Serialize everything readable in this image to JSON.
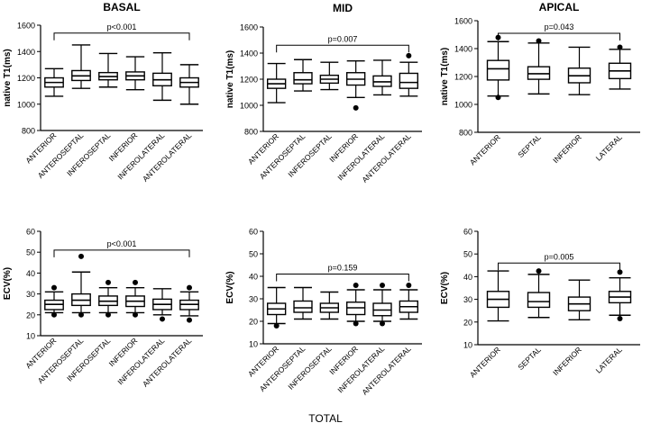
{
  "footer": "TOTAL",
  "chart_data": [
    {
      "type": "boxplot",
      "title": "BASAL",
      "ylabel": "native T1(ms)",
      "ylim": [
        800,
        1600
      ],
      "yticks": [
        800,
        1000,
        1200,
        1400,
        1600
      ],
      "categories": [
        "ANTERIOR",
        "ANTEROSEPTAL",
        "INFEROSEPTAL",
        "INFERIOR",
        "INFEROLATERAL",
        "ANTEROLATERAL"
      ],
      "boxes": [
        {
          "whisker_low": 1060,
          "q1": 1130,
          "median": 1165,
          "q3": 1200,
          "whisker_high": 1270,
          "outliers": []
        },
        {
          "whisker_low": 1120,
          "q1": 1180,
          "median": 1215,
          "q3": 1255,
          "whisker_high": 1450,
          "outliers": []
        },
        {
          "whisker_low": 1130,
          "q1": 1185,
          "median": 1210,
          "q3": 1240,
          "whisker_high": 1385,
          "outliers": []
        },
        {
          "whisker_low": 1110,
          "q1": 1185,
          "median": 1215,
          "q3": 1245,
          "whisker_high": 1360,
          "outliers": []
        },
        {
          "whisker_low": 1030,
          "q1": 1140,
          "median": 1185,
          "q3": 1235,
          "whisker_high": 1390,
          "outliers": []
        },
        {
          "whisker_low": 1000,
          "q1": 1130,
          "median": 1165,
          "q3": 1200,
          "whisker_high": 1300,
          "outliers": []
        }
      ],
      "bracket": {
        "from": 0,
        "to": 5,
        "label": "p<0.001",
        "y": 1540
      }
    },
    {
      "type": "boxplot",
      "title": "MID",
      "ylabel": "native T1(ms)",
      "ylim": [
        800,
        1600
      ],
      "yticks": [
        800,
        1000,
        1200,
        1400,
        1600
      ],
      "categories": [
        "ANTERIOR",
        "ANTEROSEPTAL",
        "INFEROSEPTAL",
        "INFERIOR",
        "INFEROLATERAL",
        "ANTEROLATERAL"
      ],
      "boxes": [
        {
          "whisker_low": 1020,
          "q1": 1130,
          "median": 1165,
          "q3": 1200,
          "whisker_high": 1320,
          "outliers": []
        },
        {
          "whisker_low": 1110,
          "q1": 1165,
          "median": 1195,
          "q3": 1250,
          "whisker_high": 1350,
          "outliers": []
        },
        {
          "whisker_low": 1120,
          "q1": 1170,
          "median": 1200,
          "q3": 1230,
          "whisker_high": 1330,
          "outliers": []
        },
        {
          "whisker_low": 1060,
          "q1": 1155,
          "median": 1200,
          "q3": 1250,
          "whisker_high": 1340,
          "outliers": [
            980
          ]
        },
        {
          "whisker_low": 1080,
          "q1": 1145,
          "median": 1180,
          "q3": 1225,
          "whisker_high": 1345,
          "outliers": []
        },
        {
          "whisker_low": 1070,
          "q1": 1130,
          "median": 1175,
          "q3": 1245,
          "whisker_high": 1330,
          "outliers": [
            1380
          ]
        }
      ],
      "bracket": {
        "from": 0,
        "to": 5,
        "label": "p=0.007",
        "y": 1460
      }
    },
    {
      "type": "boxplot",
      "title": "APICAL",
      "ylabel": "native T1(ms)",
      "ylim": [
        800,
        1600
      ],
      "yticks": [
        800,
        1000,
        1200,
        1400,
        1600
      ],
      "categories": [
        "ANTERIOR",
        "SEPTAL",
        "INFERIOR",
        "LATERAL"
      ],
      "boxes": [
        {
          "whisker_low": 1060,
          "q1": 1175,
          "median": 1255,
          "q3": 1315,
          "whisker_high": 1450,
          "outliers": [
            1480,
            1050
          ]
        },
        {
          "whisker_low": 1075,
          "q1": 1180,
          "median": 1220,
          "q3": 1270,
          "whisker_high": 1440,
          "outliers": [
            1455
          ]
        },
        {
          "whisker_low": 1070,
          "q1": 1155,
          "median": 1205,
          "q3": 1260,
          "whisker_high": 1410,
          "outliers": []
        },
        {
          "whisker_low": 1110,
          "q1": 1185,
          "median": 1240,
          "q3": 1295,
          "whisker_high": 1395,
          "outliers": [
            1410
          ]
        }
      ],
      "bracket": {
        "from": 0,
        "to": 3,
        "label": "p=0.043",
        "y": 1510
      }
    },
    {
      "type": "boxplot",
      "title": "",
      "ylabel": "ECV(%)",
      "ylim": [
        10,
        60
      ],
      "yticks": [
        10,
        20,
        30,
        40,
        50,
        60
      ],
      "categories": [
        "ANTERIOR",
        "ANTEROSEPTAL",
        "INFEROSEPTAL",
        "INFERIOR",
        "INFEROLATERAL",
        "ANTEROLATERAL"
      ],
      "boxes": [
        {
          "whisker_low": 21,
          "q1": 22.5,
          "median": 25,
          "q3": 27,
          "whisker_high": 31,
          "outliers": [
            33,
            20
          ]
        },
        {
          "whisker_low": 21,
          "q1": 24.5,
          "median": 27,
          "q3": 30,
          "whisker_high": 40.5,
          "outliers": [
            48,
            20
          ]
        },
        {
          "whisker_low": 21,
          "q1": 24.5,
          "median": 26.5,
          "q3": 29,
          "whisker_high": 33,
          "outliers": [
            35.5,
            20
          ]
        },
        {
          "whisker_low": 21,
          "q1": 24,
          "median": 26.5,
          "q3": 29,
          "whisker_high": 33,
          "outliers": [
            35.5,
            20
          ]
        },
        {
          "whisker_low": 20,
          "q1": 22.5,
          "median": 25,
          "q3": 27.5,
          "whisker_high": 32.5,
          "outliers": [
            18
          ]
        },
        {
          "whisker_low": 19.5,
          "q1": 22.5,
          "median": 25,
          "q3": 27,
          "whisker_high": 31,
          "outliers": [
            33,
            17.5
          ]
        }
      ],
      "bracket": {
        "from": 0,
        "to": 5,
        "label": "p<0.001",
        "y": 51
      }
    },
    {
      "type": "boxplot",
      "title": "",
      "ylabel": "ECV(%)",
      "ylim": [
        10,
        60
      ],
      "yticks": [
        10,
        20,
        30,
        40,
        50,
        60
      ],
      "categories": [
        "ANTERIOR",
        "ANTEROSEPTAL",
        "INFEROSEPTAL",
        "INFERIOR",
        "INFEROLATERAL",
        "ANTEROLATERAL"
      ],
      "boxes": [
        {
          "whisker_low": 19,
          "q1": 23,
          "median": 25.5,
          "q3": 28,
          "whisker_high": 35,
          "outliers": [
            18
          ]
        },
        {
          "whisker_low": 21,
          "q1": 24,
          "median": 26,
          "q3": 29,
          "whisker_high": 35,
          "outliers": []
        },
        {
          "whisker_low": 21,
          "q1": 24,
          "median": 26,
          "q3": 28,
          "whisker_high": 33,
          "outliers": []
        },
        {
          "whisker_low": 20,
          "q1": 23,
          "median": 26,
          "q3": 28.5,
          "whisker_high": 34,
          "outliers": [
            36,
            19
          ]
        },
        {
          "whisker_low": 20,
          "q1": 22.5,
          "median": 25,
          "q3": 28,
          "whisker_high": 34,
          "outliers": [
            36,
            19
          ]
        },
        {
          "whisker_low": 21,
          "q1": 24,
          "median": 26.5,
          "q3": 29,
          "whisker_high": 34,
          "outliers": [
            36
          ]
        }
      ],
      "bracket": {
        "from": 0,
        "to": 5,
        "label": "p=0.159",
        "y": 41
      }
    },
    {
      "type": "boxplot",
      "title": "",
      "ylabel": "ECV(%)",
      "ylim": [
        10,
        60
      ],
      "yticks": [
        10,
        20,
        30,
        40,
        50,
        60
      ],
      "categories": [
        "ANTERIOR",
        "SEPTAL",
        "INFERIOR",
        "LATERAL"
      ],
      "boxes": [
        {
          "whisker_low": 20.5,
          "q1": 26.5,
          "median": 30,
          "q3": 33.5,
          "whisker_high": 42.5,
          "outliers": []
        },
        {
          "whisker_low": 22,
          "q1": 26.5,
          "median": 29,
          "q3": 33,
          "whisker_high": 41,
          "outliers": [
            42.5
          ]
        },
        {
          "whisker_low": 21,
          "q1": 25,
          "median": 28,
          "q3": 31,
          "whisker_high": 38.5,
          "outliers": []
        },
        {
          "whisker_low": 23,
          "q1": 28.5,
          "median": 31,
          "q3": 33.5,
          "whisker_high": 39.5,
          "outliers": [
            42,
            21.5
          ]
        }
      ],
      "bracket": {
        "from": 0,
        "to": 3,
        "label": "p=0.005",
        "y": 46
      }
    }
  ]
}
